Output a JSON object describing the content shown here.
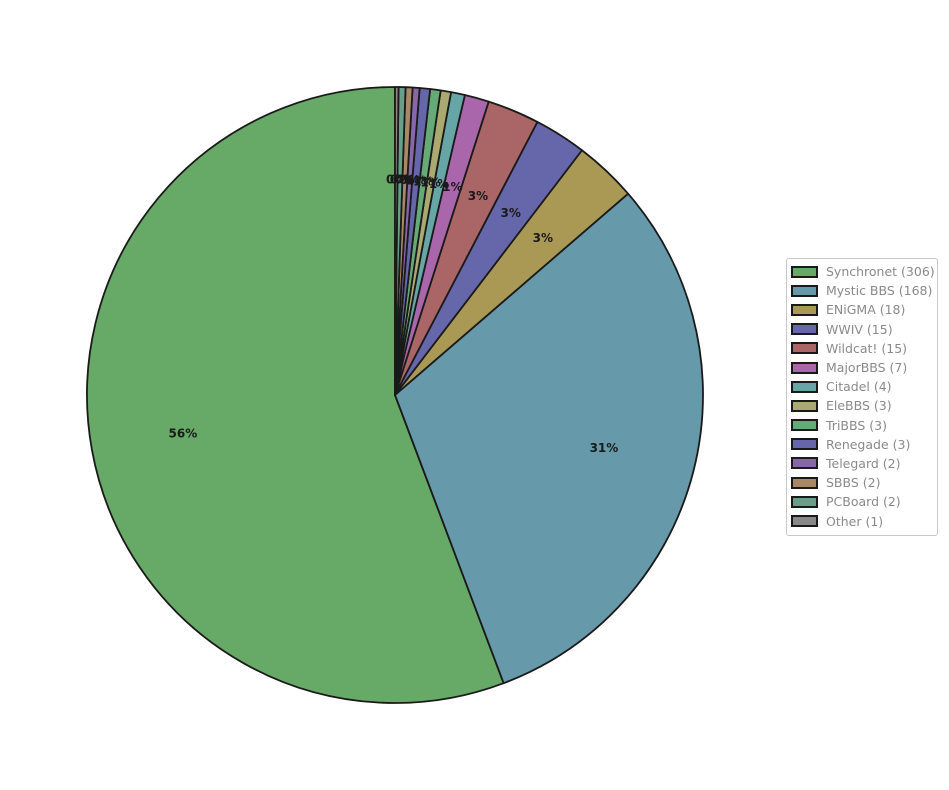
{
  "chart_data": {
    "type": "pie",
    "title": "",
    "slices": [
      {
        "label": "Synchronet",
        "value": 306,
        "legend": "Synchronet (306)",
        "pct_label": "56%",
        "color": "#67a966"
      },
      {
        "label": "Mystic BBS",
        "value": 168,
        "legend": "Mystic BBS (168)",
        "pct_label": "31%",
        "color": "#6699aa"
      },
      {
        "label": "ENiGMA",
        "value": 18,
        "legend": "ENiGMA (18)",
        "pct_label": "3%",
        "color": "#aa9955"
      },
      {
        "label": "WWIV",
        "value": 15,
        "legend": "WWIV (15)",
        "pct_label": "3%",
        "color": "#6666aa"
      },
      {
        "label": "Wildcat!",
        "value": 15,
        "legend": "Wildcat! (15)",
        "pct_label": "3%",
        "color": "#aa6666"
      },
      {
        "label": "MajorBBS",
        "value": 7,
        "legend": "MajorBBS (7)",
        "pct_label": "1%",
        "color": "#aa66aa"
      },
      {
        "label": "Citadel",
        "value": 4,
        "legend": "Citadel (4)",
        "pct_label": "1%",
        "color": "#66a6a6"
      },
      {
        "label": "EleBBS",
        "value": 3,
        "legend": "EleBBS (3)",
        "pct_label": "1%",
        "color": "#aaaa70"
      },
      {
        "label": "TriBBS",
        "value": 3,
        "legend": "TriBBS (3)",
        "pct_label": "1%",
        "color": "#66aa77"
      },
      {
        "label": "Renegade",
        "value": 3,
        "legend": "Renegade (3)",
        "pct_label": "1%",
        "color": "#6666aa"
      },
      {
        "label": "Telegard",
        "value": 2,
        "legend": "Telegard (2)",
        "pct_label": "0%",
        "color": "#8866aa"
      },
      {
        "label": "SBBS",
        "value": 2,
        "legend": "SBBS (2)",
        "pct_label": "0%",
        "color": "#aa8866"
      },
      {
        "label": "PCBoard",
        "value": 2,
        "legend": "PCBoard (2)",
        "pct_label": "0%",
        "color": "#66a088"
      },
      {
        "label": "Other",
        "value": 1,
        "legend": "Other (1)",
        "pct_label": "0%",
        "color": "#888888"
      }
    ],
    "start_angle_deg": 90,
    "direction": "counterclockwise",
    "edge_color": "#1a1a1a",
    "legend_placement": "right"
  }
}
